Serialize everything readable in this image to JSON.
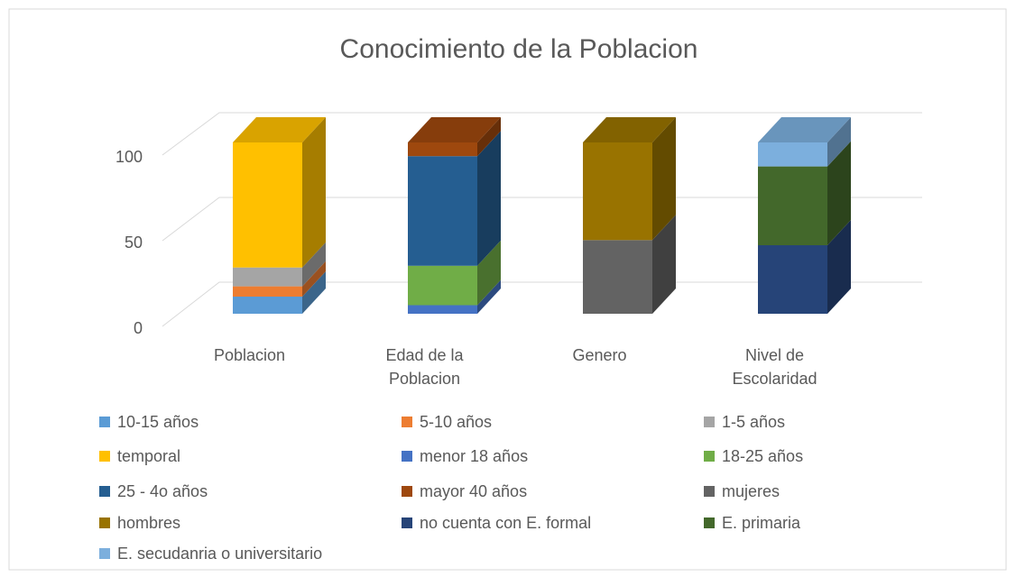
{
  "chart_data": {
    "type": "bar3d-stacked",
    "title": "Conocimiento de la Poblacion",
    "categories": [
      "Poblacion",
      "Edad de la Poblacion",
      "Genero",
      "Nivel de Escolaridad"
    ],
    "ylim": [
      0,
      100
    ],
    "yticks": [
      0,
      50,
      100
    ],
    "grid": true,
    "series": [
      {
        "name": "10-15 años",
        "color": "#5b9bd5",
        "values": [
          10,
          null,
          null,
          null
        ]
      },
      {
        "name": "5-10 años",
        "color": "#ed7d31",
        "values": [
          6,
          null,
          null,
          null
        ]
      },
      {
        "name": "1-5 años",
        "color": "#a5a5a5",
        "values": [
          11,
          null,
          null,
          null
        ]
      },
      {
        "name": "temporal",
        "color": "#ffc000",
        "values": [
          73,
          null,
          null,
          null
        ]
      },
      {
        "name": "menor 18 años",
        "color": "#4472c4",
        "values": [
          null,
          5,
          null,
          null
        ]
      },
      {
        "name": "18-25 años",
        "color": "#70ad47",
        "values": [
          null,
          23,
          null,
          null
        ]
      },
      {
        "name": "25 - 4o años",
        "color": "#255e91",
        "values": [
          null,
          64,
          null,
          null
        ]
      },
      {
        "name": "mayor 40 años",
        "color": "#9e480e",
        "values": [
          null,
          8,
          null,
          null
        ]
      },
      {
        "name": "mujeres",
        "color": "#636363",
        "values": [
          null,
          null,
          43,
          null
        ]
      },
      {
        "name": "hombres",
        "color": "#997300",
        "values": [
          null,
          null,
          57,
          null
        ]
      },
      {
        "name": "no cuenta con E. formal",
        "color": "#264478",
        "values": [
          null,
          null,
          null,
          40
        ]
      },
      {
        "name": "E. primaria",
        "color": "#43682b",
        "values": [
          null,
          null,
          null,
          46
        ]
      },
      {
        "name": "E. secudanria o universitario",
        "color": "#7cafdd",
        "values": [
          null,
          null,
          null,
          14
        ]
      }
    ]
  }
}
